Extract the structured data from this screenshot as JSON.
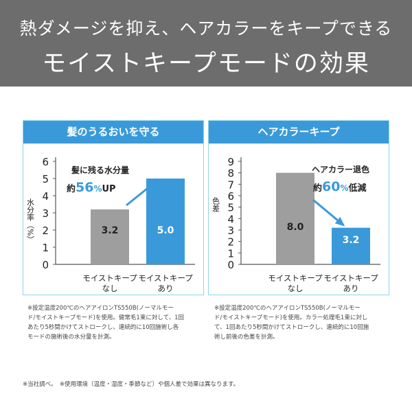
{
  "banner": {
    "line1": "熱ダメージを抑え、ヘアカラーをキープできる",
    "line2": "モイストキープモードの効果"
  },
  "colors": {
    "banner_bg": "#6d6d6d",
    "accent_blue": "#3a9ad9",
    "bar_gray": "#9e9e9e",
    "bar_blue": "#3a9ad9",
    "panel_border": "#8fd3ea"
  },
  "chart_data": [
    {
      "type": "bar",
      "title": "髪のうるおいを守る",
      "ylabel": "水分率（%）",
      "ylim": [
        0,
        6
      ],
      "yticks": [
        "0",
        "1",
        "2",
        "3",
        "4",
        "5",
        "6"
      ],
      "categories": [
        [
          "モイストキープ",
          "なし"
        ],
        [
          "モイストキープ",
          "あり"
        ]
      ],
      "values": [
        3.2,
        5.0
      ],
      "value_labels": [
        "3.2",
        "5.0"
      ],
      "annotation": {
        "line1": "髪に残る水分量",
        "prefix": "約",
        "number": "56",
        "unit": "%",
        "suffix": "UP"
      }
    },
    {
      "type": "bar",
      "title": "ヘアカラーキープ",
      "ylabel": "色差",
      "ylim": [
        0,
        9
      ],
      "yticks": [
        "0",
        "1",
        "2",
        "3",
        "4",
        "5",
        "6",
        "7",
        "8",
        "9"
      ],
      "categories": [
        [
          "モイストキープ",
          "なし"
        ],
        [
          "モイストキープ",
          "あり"
        ]
      ],
      "values": [
        8.0,
        3.2
      ],
      "value_labels": [
        "8.0",
        "3.2"
      ],
      "annotation": {
        "line1": "ヘアカラー退色",
        "prefix": "約",
        "number": "60",
        "unit": "%",
        "suffix": "低減"
      }
    }
  ],
  "notes": [
    [
      "※設定温度200℃のヘアアイロンTS550B(ノーマルモー",
      "ド/モイストキープモード)を使用。健常毛1束に対して、1回",
      "あたり5秒間かけてストロークし、連続的に10回施術し各",
      "モードの施術後の水分量を計測。"
    ],
    [
      "※設定温度200℃のヘアアイロンTS550B(ノーマルモー",
      "ド/モイストキープモード)を使用。カラー処理毛1束に対し",
      "て、1回あたり5秒間かけてストロークし、連続的に10回施",
      "術し前後の色差を計測。"
    ]
  ],
  "footer": "※当社調べ。　※使用環境（温度・湿度・季節など）や個人差で効果は異なります。"
}
